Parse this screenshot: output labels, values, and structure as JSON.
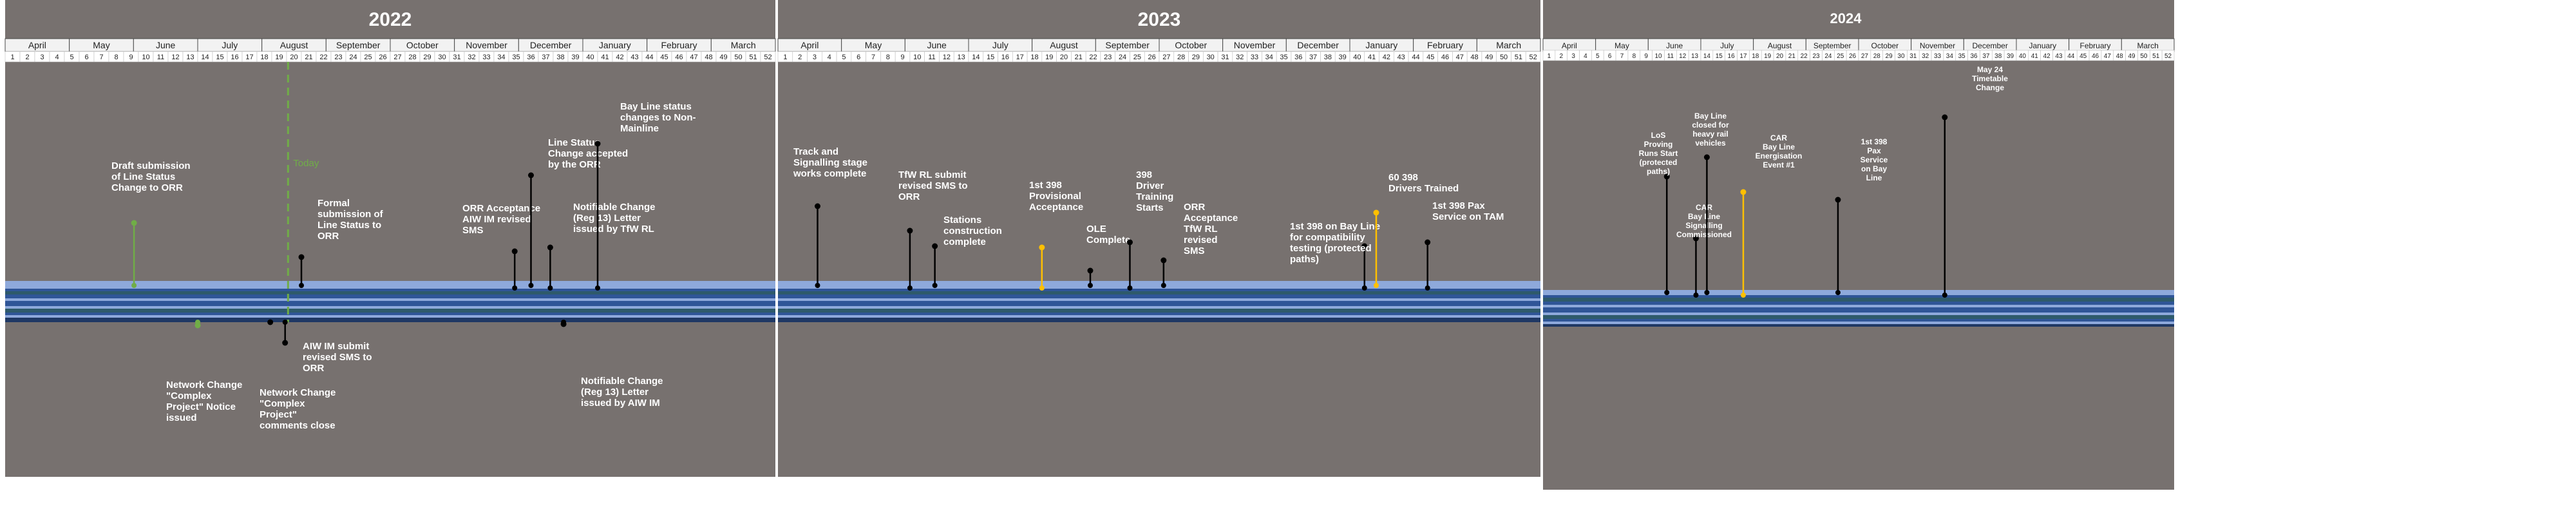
{
  "colors": {
    "panel_bg": "#77716f",
    "month_cell_bg": "#f2f2f2",
    "week_cell_bg": "#ffffff",
    "grid_line": "#4a4a4a",
    "band_light": "#8ea9db",
    "band_mid": "#2f5597",
    "band_teal": "#2e5a6b",
    "band_dark": "#1f3864",
    "milestone_black": "#000000",
    "milestone_green": "#70ad47",
    "milestone_amber": "#ffc000",
    "today_line": "#70ad47",
    "label_text": "#ffffff"
  },
  "chart_data": {
    "type": "timeline",
    "panels": [
      {
        "year": "2022",
        "months": [
          "April",
          "May",
          "June",
          "July",
          "August",
          "September",
          "October",
          "November",
          "December",
          "January",
          "February",
          "March"
        ],
        "weeks": [
          1,
          2,
          3,
          4,
          5,
          6,
          7,
          8,
          9,
          10,
          11,
          12,
          13,
          14,
          15,
          16,
          17,
          18,
          19,
          20,
          21,
          22,
          23,
          24,
          25,
          26,
          27,
          28,
          29,
          30,
          31,
          32,
          33,
          34,
          35,
          36,
          37,
          38,
          39,
          40,
          41,
          42,
          43,
          44,
          45,
          46,
          47,
          48,
          49,
          50,
          51,
          52
        ],
        "today": {
          "week": 19.6,
          "label": "Today"
        },
        "milestones": [
          {
            "week": 9.2,
            "position": "above",
            "marker": "green",
            "lines": [
              "Draft submission",
              "of Line Status",
              "Change to ORR"
            ]
          },
          {
            "week": 13.5,
            "position": "below",
            "marker": "green",
            "lines": [
              "Network Change",
              "\"Complex",
              "Project\" Notice",
              "issued"
            ]
          },
          {
            "week": 18.4,
            "position": "below",
            "marker": "black",
            "lines": [
              "Network Change",
              "\"Complex",
              "Project\"",
              "comments close"
            ]
          },
          {
            "week": 19.4,
            "position": "below",
            "marker": "black",
            "lines": [
              "AIW IM submit",
              "revised SMS to",
              "ORR"
            ]
          },
          {
            "week": 20.5,
            "position": "above",
            "marker": "black",
            "lines": [
              "Formal",
              "submission of",
              "Line Status to",
              "ORR"
            ]
          },
          {
            "week": 34.9,
            "position": "above",
            "marker": "black",
            "lines": [
              "ORR Acceptance",
              "AIW IM revised",
              "SMS"
            ]
          },
          {
            "week": 36.0,
            "position": "above",
            "marker": "black",
            "lines": [
              "Line Status",
              "Change accepted",
              "by the ORR"
            ]
          },
          {
            "week": 37.3,
            "position": "above",
            "marker": "black",
            "lines": [
              "Notifiable Change",
              "(Reg 13) Letter",
              "issued by TfW RL"
            ]
          },
          {
            "week": 38.2,
            "position": "below",
            "marker": "black",
            "lines": [
              "Notifiable Change",
              "(Reg 13) Letter",
              "issued by AIW IM"
            ]
          },
          {
            "week": 40.5,
            "position": "above",
            "marker": "black",
            "lines": [
              "Bay Line status",
              "changes to Non-",
              "Mainline"
            ]
          }
        ]
      },
      {
        "year": "2023",
        "months": [
          "April",
          "May",
          "June",
          "July",
          "August",
          "September",
          "October",
          "November",
          "December",
          "January",
          "February",
          "March"
        ],
        "weeks": [
          1,
          2,
          3,
          4,
          5,
          6,
          7,
          8,
          9,
          10,
          11,
          12,
          13,
          14,
          15,
          16,
          17,
          18,
          19,
          20,
          21,
          22,
          23,
          24,
          25,
          26,
          27,
          28,
          29,
          30,
          31,
          32,
          33,
          34,
          35,
          36,
          37,
          38,
          39,
          40,
          41,
          42,
          43,
          44,
          45,
          46,
          47,
          48,
          49,
          50,
          51,
          52
        ],
        "milestones": [
          {
            "week": 3.2,
            "position": "above",
            "marker": "black",
            "lines": [
              "Track and",
              "Signalling stage",
              "works complete"
            ]
          },
          {
            "week": 9.5,
            "position": "above",
            "marker": "black",
            "lines": [
              "TfW RL submit",
              "revised SMS to",
              "ORR"
            ]
          },
          {
            "week": 11.2,
            "position": "above",
            "marker": "black",
            "lines": [
              "Stations",
              "construction",
              "complete"
            ]
          },
          {
            "week": 18.5,
            "position": "above",
            "marker": "amber",
            "lines": [
              "1st 398",
              "Provisional",
              "Acceptance"
            ]
          },
          {
            "week": 21.8,
            "position": "above",
            "marker": "black",
            "lines": [
              "OLE",
              "Complete"
            ]
          },
          {
            "week": 24.5,
            "position": "above",
            "marker": "black",
            "lines": [
              "398",
              "Driver",
              "Training",
              "Starts"
            ]
          },
          {
            "week": 26.8,
            "position": "above",
            "marker": "black",
            "lines": [
              "ORR",
              "Acceptance",
              "TfW RL",
              "revised",
              "SMS"
            ]
          },
          {
            "week": 40.5,
            "position": "above",
            "marker": "black",
            "lines": [
              "1st 398 on Bay Line",
              "for compatibility",
              "testing (protected",
              "paths)"
            ]
          },
          {
            "week": 41.3,
            "position": "above",
            "marker": "amber",
            "lines": [
              "60 398",
              "Drivers Trained"
            ]
          },
          {
            "week": 44.8,
            "position": "above",
            "marker": "black",
            "lines": [
              "1st 398 Pax",
              "Service on TAM"
            ]
          }
        ]
      },
      {
        "year": "2024",
        "months": [
          "April",
          "May",
          "June",
          "July",
          "August",
          "September",
          "October",
          "November",
          "December",
          "January",
          "February",
          "March"
        ],
        "weeks": [
          1,
          2,
          3,
          4,
          5,
          6,
          7,
          8,
          9,
          10,
          11,
          12,
          13,
          14,
          15,
          16,
          17,
          18,
          19,
          20,
          21,
          22,
          23,
          24,
          25,
          26,
          27,
          28,
          29,
          30,
          31,
          32,
          33,
          34,
          35,
          36,
          37,
          38,
          39,
          40,
          41,
          42,
          43,
          44,
          45,
          46,
          47,
          48,
          49,
          50,
          51,
          52
        ],
        "milestones": [
          {
            "week": 10.7,
            "position": "above",
            "marker": "black",
            "lines": [
              "LoS",
              "Proving",
              "Runs Start",
              "(protected",
              "paths)"
            ]
          },
          {
            "week": 13.1,
            "position": "above",
            "marker": "black",
            "lines": [
              "CAR",
              "Bay Line",
              "Signalling",
              "Commissioned"
            ]
          },
          {
            "week": 14.0,
            "position": "above",
            "marker": "black",
            "lines": [
              "Bay Line",
              "closed for",
              "heavy rail",
              "vehicles"
            ]
          },
          {
            "week": 17.0,
            "position": "above",
            "marker": "amber",
            "lines": [
              "CAR",
              "Bay Line",
              "Energisation",
              "Event #1"
            ]
          },
          {
            "week": 24.8,
            "position": "above",
            "marker": "black",
            "lines": [
              "1st 398",
              "Pax",
              "Service",
              "on Bay",
              "Line"
            ]
          },
          {
            "week": 33.6,
            "position": "above",
            "marker": "black",
            "lines": [
              "May 24",
              "Timetable",
              "Change"
            ]
          }
        ]
      }
    ]
  }
}
